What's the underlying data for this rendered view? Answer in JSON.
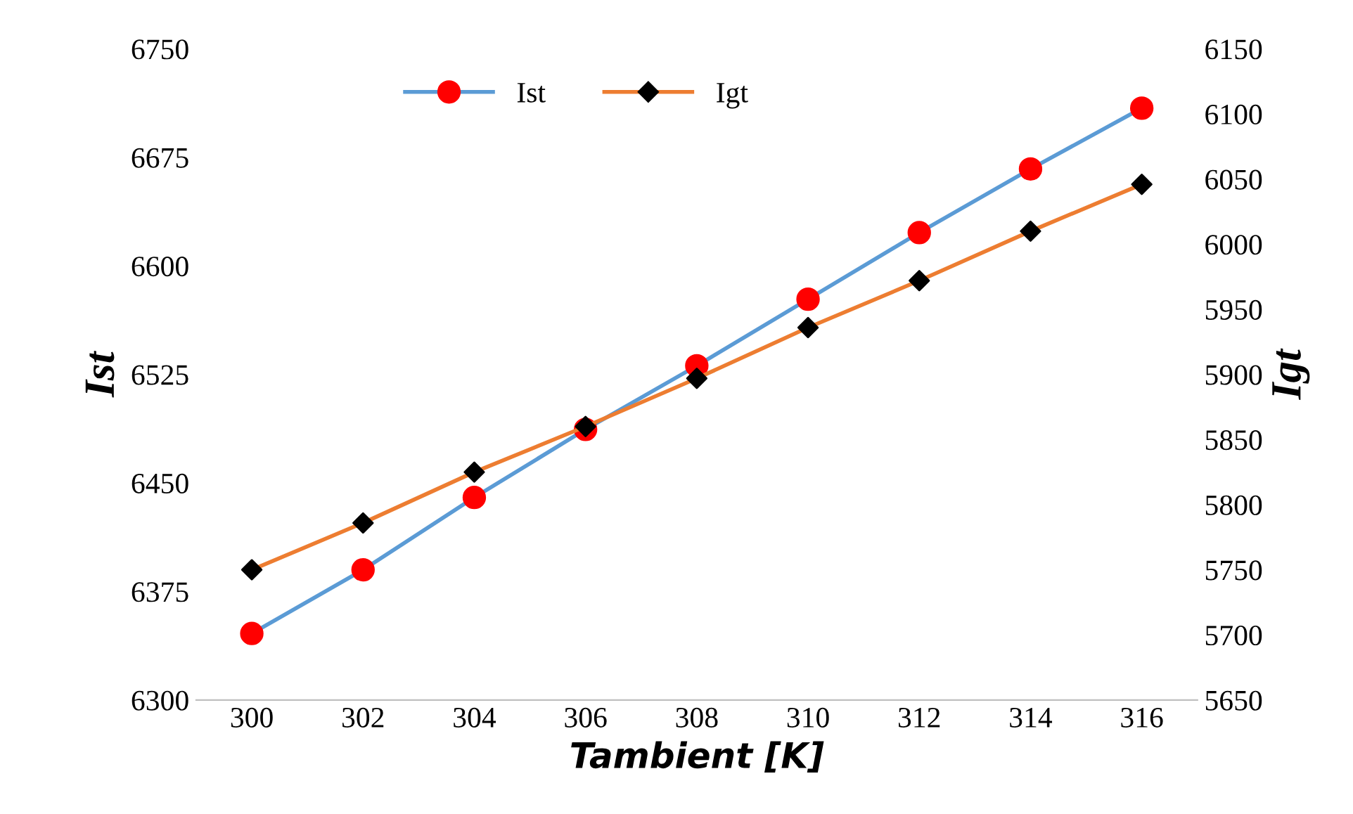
{
  "chart_data": {
    "type": "line",
    "xlabel": "Tambient [K]",
    "ylabel": "Ist",
    "y2label": "Igt",
    "categories": [
      "300",
      "302",
      "304",
      "306",
      "308",
      "310",
      "312",
      "314",
      "316"
    ],
    "series": [
      {
        "name": "Ist",
        "color": "#5b9bd5",
        "marker": "circle",
        "colors": [
          "#ff0000",
          "#ff0000",
          "#ff0000",
          "#ff0000",
          "#ff0000",
          "#ff0000",
          "#ff0000",
          "#ff0000",
          "#ff0000"
        ],
        "values": [
          6346,
          6390,
          6440,
          6487,
          6531,
          6577,
          6623,
          6667,
          6709
        ]
      },
      {
        "name": "Igt",
        "color": "#ed7d31",
        "marker": "diamond",
        "axis": "y2",
        "colors": [
          "#000000",
          "#000000",
          "#000000",
          "#000000",
          "#000000",
          "#000000",
          "#000000",
          "#000000",
          "#000000"
        ],
        "values": [
          5750,
          5786,
          5825,
          5860,
          5897,
          5936,
          5972,
          6010,
          6046
        ]
      }
    ],
    "ylim": [
      6300,
      6750
    ],
    "yticks": [
      6300,
      6375,
      6450,
      6525,
      6600,
      6675,
      6750
    ],
    "y2lim": [
      5650,
      6150
    ],
    "y2ticks": [
      5650,
      5700,
      5750,
      5800,
      5850,
      5900,
      5950,
      6000,
      6050,
      6100,
      6150
    ],
    "grid": false,
    "legend": "top",
    "line_style": "solid"
  }
}
